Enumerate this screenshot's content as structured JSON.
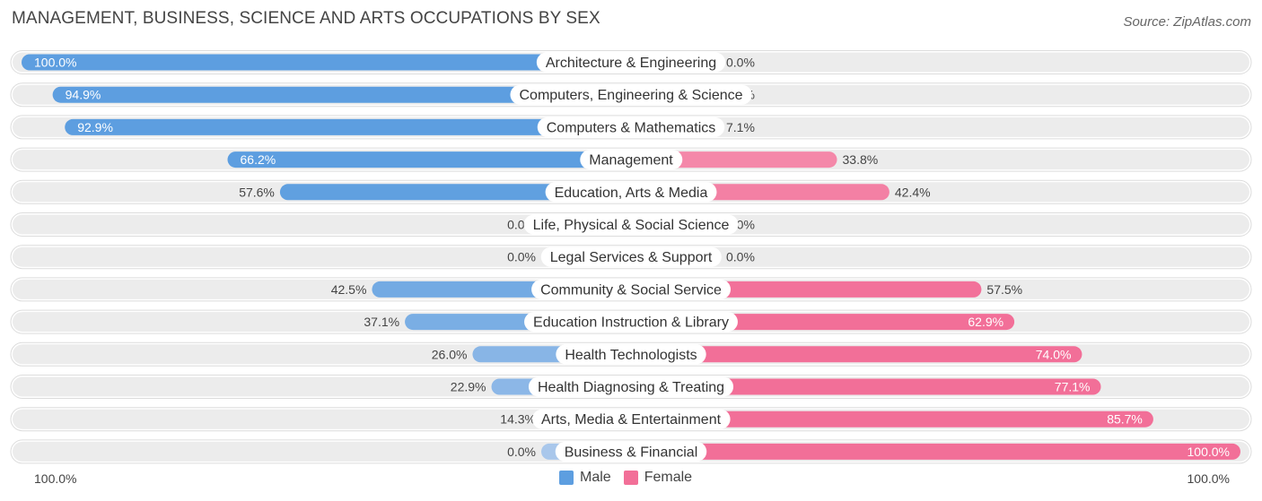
{
  "title": "MANAGEMENT, BUSINESS, SCIENCE AND ARTS OCCUPATIONS BY SEX",
  "source": "Source: ZipAtlas.com",
  "axis": {
    "left_label": "100.0%",
    "right_label": "100.0%"
  },
  "legend": {
    "male_label": "Male",
    "female_label": "Female"
  },
  "colors": {
    "male": "#5d9ee0",
    "male_light": "#a9c7eb",
    "female": "#f26f98",
    "female_light": "#f6a9c0",
    "row_bg": "#ececec"
  },
  "chart_data": {
    "type": "bar",
    "orientation": "horizontal-diverging",
    "categories": [
      "Architecture & Engineering",
      "Computers, Engineering & Science",
      "Computers & Mathematics",
      "Management",
      "Education, Arts & Media",
      "Life, Physical & Social Science",
      "Legal Services & Support",
      "Community & Social Service",
      "Education Instruction & Library",
      "Health Technologists",
      "Health Diagnosing & Treating",
      "Arts, Media & Entertainment",
      "Business & Financial"
    ],
    "series": [
      {
        "name": "Male",
        "values": [
          100.0,
          94.9,
          92.9,
          66.2,
          57.6,
          0.0,
          0.0,
          42.5,
          37.1,
          26.0,
          22.9,
          14.3,
          0.0
        ]
      },
      {
        "name": "Female",
        "values": [
          0.0,
          5.1,
          7.1,
          33.8,
          42.4,
          0.0,
          0.0,
          57.5,
          62.9,
          74.0,
          77.1,
          85.7,
          100.0
        ]
      }
    ],
    "value_labels": {
      "male": [
        "100.0%",
        "94.9%",
        "92.9%",
        "66.2%",
        "57.6%",
        "0.0%",
        "0.0%",
        "42.5%",
        "37.1%",
        "26.0%",
        "22.9%",
        "14.3%",
        "0.0%"
      ],
      "female": [
        "0.0%",
        "5.1%",
        "7.1%",
        "33.8%",
        "42.4%",
        "0.0%",
        "0.0%",
        "57.5%",
        "62.9%",
        "74.0%",
        "77.1%",
        "85.7%",
        "100.0%"
      ]
    },
    "xlim": [
      -100,
      100
    ],
    "legend_position": "bottom-center"
  }
}
